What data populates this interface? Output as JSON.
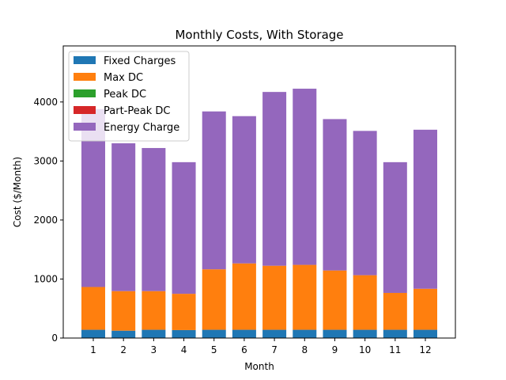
{
  "chart_data": {
    "type": "bar",
    "stacked": true,
    "title": "Monthly Costs, With Storage",
    "xlabel": "Month",
    "ylabel": "Cost ($/Month)",
    "categories": [
      "1",
      "2",
      "3",
      "4",
      "5",
      "6",
      "7",
      "8",
      "9",
      "10",
      "11",
      "12"
    ],
    "ylim": [
      0,
      4950
    ],
    "yticks": [
      0,
      1000,
      2000,
      3000,
      4000
    ],
    "legend_position": "top-left",
    "grid": false,
    "series": [
      {
        "name": "Fixed Charges",
        "color": "#1f77b4",
        "values": [
          140,
          125,
          140,
          135,
          140,
          140,
          140,
          140,
          140,
          140,
          140,
          140
        ]
      },
      {
        "name": "Max DC",
        "color": "#ff7f0e",
        "values": [
          725,
          670,
          655,
          615,
          1025,
          1125,
          1085,
          1100,
          1005,
          925,
          625,
          695
        ]
      },
      {
        "name": "Peak DC",
        "color": "#2ca02c",
        "values": [
          0,
          0,
          0,
          0,
          0,
          0,
          0,
          0,
          0,
          0,
          0,
          0
        ]
      },
      {
        "name": "Part-Peak DC",
        "color": "#d62728",
        "values": [
          0,
          0,
          0,
          0,
          0,
          0,
          0,
          0,
          0,
          0,
          0,
          0
        ]
      },
      {
        "name": "Energy Charge",
        "color": "#9467bd",
        "values": [
          3015,
          2505,
          2425,
          2230,
          2675,
          2495,
          2945,
          2985,
          2565,
          2445,
          2215,
          2695
        ]
      }
    ]
  }
}
